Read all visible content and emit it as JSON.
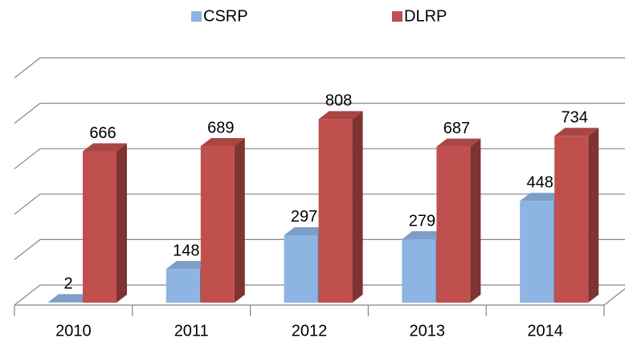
{
  "chart_data": {
    "type": "bar3d",
    "categories": [
      "2010",
      "2011",
      "2012",
      "2013",
      "2014"
    ],
    "series": [
      {
        "name": "CSRP",
        "color": "#8db4e2",
        "values": [
          2,
          148,
          297,
          279,
          448
        ]
      },
      {
        "name": "DLRP",
        "color": "#c0504d",
        "values": [
          666,
          689,
          808,
          687,
          734
        ]
      }
    ],
    "ylim": [
      0,
      1000
    ],
    "yticks": [
      0,
      200,
      400,
      600,
      800,
      1000
    ],
    "grid": true,
    "legend": "top"
  }
}
